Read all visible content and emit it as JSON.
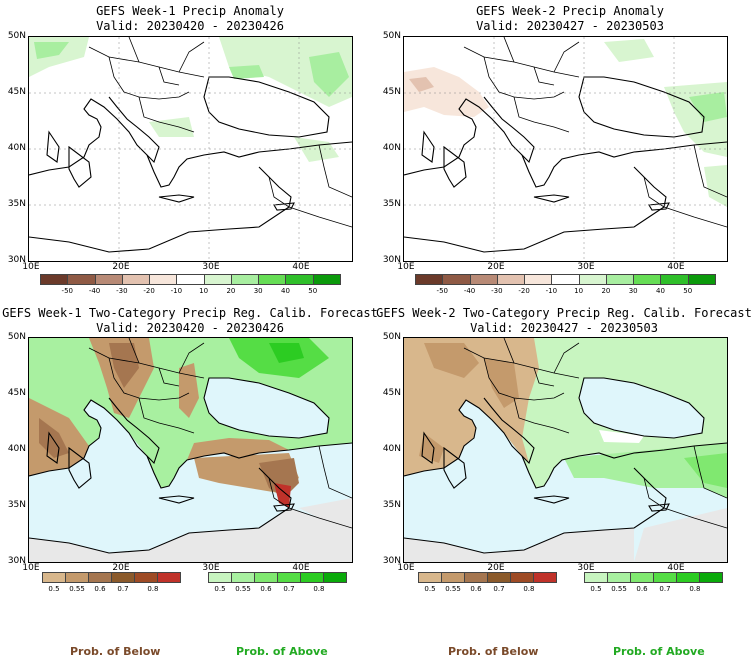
{
  "panels": [
    {
      "title1": "GEFS Week-1 Precip Anomaly",
      "title2": "Valid: 20230420 - 20230426"
    },
    {
      "title1": "GEFS Week-2 Precip Anomaly",
      "title2": "Valid: 20230427 - 20230503"
    },
    {
      "title1": "GEFS Week-1 Two-Category Precip Reg. Calib. Forecast",
      "title2": "Valid: 20230420 - 20230426"
    },
    {
      "title1": "GEFS Week-2 Two-Category Precip Reg. Calib. Forecast",
      "title2": "Valid: 20230427 - 20230503"
    }
  ],
  "lat_labels": [
    "50N",
    "45N",
    "40N",
    "35N",
    "30N"
  ],
  "lon_labels": [
    "10E",
    "20E",
    "30E",
    "40E"
  ],
  "anomaly_ticks": [
    "-50",
    "-40",
    "-30",
    "-20",
    "-10",
    "10",
    "20",
    "30",
    "40",
    "50"
  ],
  "anomaly_colors": [
    "#6b3a2a",
    "#8f5a45",
    "#b88a76",
    "#e3c2b0",
    "#f7e6db",
    "#ffffff",
    "#d8f5d0",
    "#a8eea0",
    "#66dd55",
    "#2fbf2a",
    "#0b9a0b"
  ],
  "prob_ticks": [
    "0.5",
    "0.55",
    "0.6",
    "0.7",
    "0.8"
  ],
  "below_colors": [
    "#d8b78c",
    "#c49a6c",
    "#a57650",
    "#8b5a2b",
    "#9e4b25",
    "#c0322a"
  ],
  "above_colors": [
    "#c8f5c0",
    "#a8f0a0",
    "#80e870",
    "#55dd45",
    "#2ccc22",
    "#0aaa0a"
  ],
  "prob_below_label": "Prob. of Below",
  "prob_above_label": "Prob. of Above",
  "colors": {
    "sea": "#dff6fb",
    "land_no_data": "#e8e8e8",
    "prob_below_text": "#7a4a2a",
    "prob_above_text": "#22aa22"
  }
}
